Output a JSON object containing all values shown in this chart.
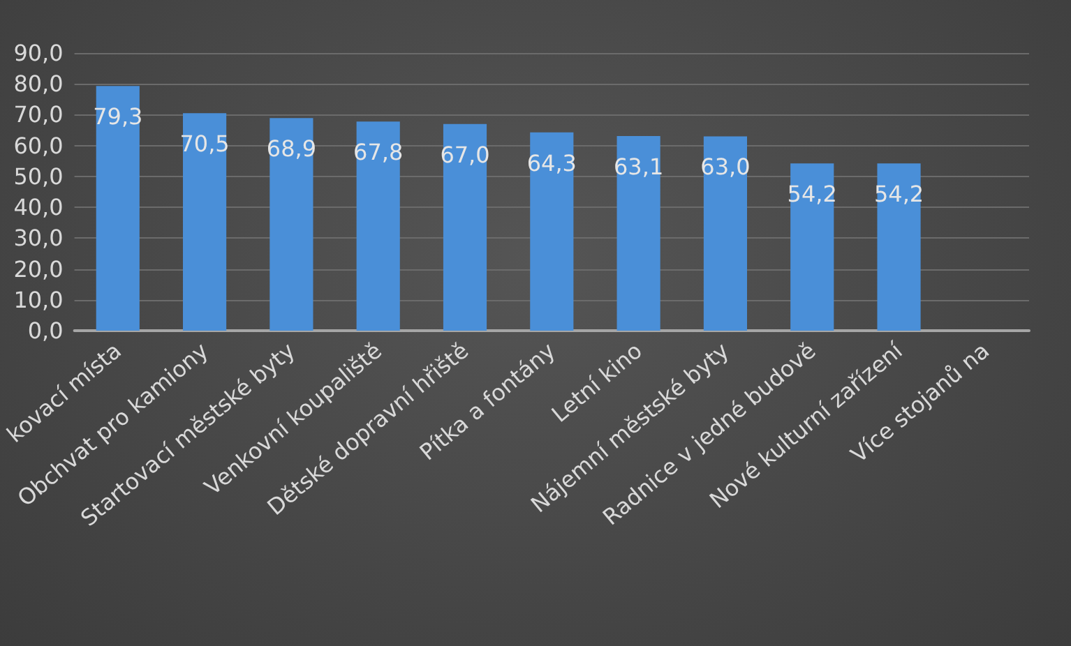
{
  "chart_data": {
    "type": "bar",
    "categories": [
      "kovací místa",
      "Obchvat pro kamiony",
      "Startovací městské byty",
      "Venkovní koupaliště",
      "Dětské dopravní hřiště",
      "Pítka a fontány",
      "Letní kino",
      "Nájemní městské byty",
      "Radnice v jedné budově",
      "Nové kulturní zařízení",
      "Více stojanů na"
    ],
    "values": [
      79.3,
      70.5,
      68.9,
      67.8,
      67.0,
      64.3,
      63.1,
      63.0,
      54.2,
      54.2,
      null
    ],
    "value_labels": [
      "79,3",
      "70,5",
      "68,9",
      "67,8",
      "67,0",
      "64,3",
      "63,1",
      "63,0",
      "54,2",
      "54,2",
      null
    ],
    "color": "#4a8fd8",
    "ylim": [
      0,
      90
    ],
    "yticks": [
      {
        "value": 0,
        "label": "0,0"
      },
      {
        "value": 10,
        "label": "10,0"
      },
      {
        "value": 20,
        "label": "20,0"
      },
      {
        "value": 30,
        "label": "30,0"
      },
      {
        "value": 40,
        "label": "40,0"
      },
      {
        "value": 50,
        "label": "50,0"
      },
      {
        "value": 60,
        "label": "60,0"
      },
      {
        "value": 70,
        "label": "70,0"
      },
      {
        "value": 80,
        "label": "80,0"
      },
      {
        "value": 90,
        "label": "90,0"
      }
    ],
    "grid": "y"
  }
}
